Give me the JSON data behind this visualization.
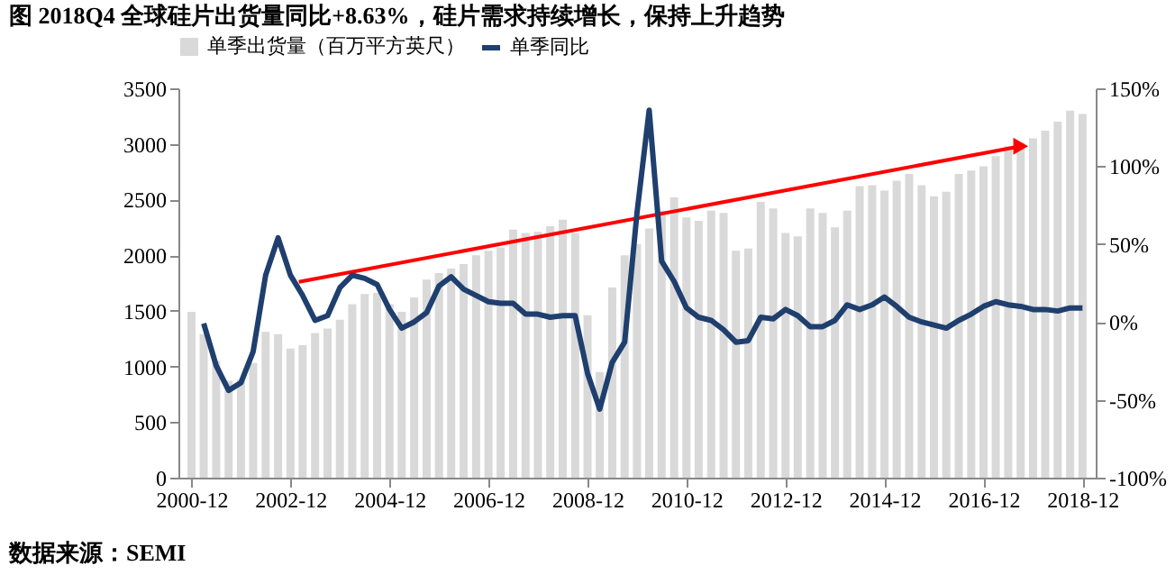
{
  "chart_data": {
    "type": "bar",
    "title": "图    2018Q4 全球硅片出货量同比+8.63%，硅片需求持续增长，保持上升趋势",
    "annotations": [
      "数据来源：SEMI"
    ],
    "x": [
      "2000-12",
      "2001-03",
      "2001-06",
      "2001-09",
      "2001-12",
      "2002-03",
      "2002-06",
      "2002-09",
      "2002-12",
      "2003-03",
      "2003-06",
      "2003-09",
      "2003-12",
      "2004-03",
      "2004-06",
      "2004-09",
      "2004-12",
      "2005-03",
      "2005-06",
      "2005-09",
      "2005-12",
      "2006-03",
      "2006-06",
      "2006-09",
      "2006-12",
      "2007-03",
      "2007-06",
      "2007-09",
      "2007-12",
      "2008-03",
      "2008-06",
      "2008-09",
      "2008-12",
      "2009-03",
      "2009-06",
      "2009-09",
      "2009-12",
      "2010-03",
      "2010-06",
      "2010-09",
      "2010-12",
      "2011-03",
      "2011-06",
      "2011-09",
      "2011-12",
      "2012-03",
      "2012-06",
      "2012-09",
      "2012-12",
      "2013-03",
      "2013-06",
      "2013-09",
      "2013-12",
      "2014-03",
      "2014-06",
      "2014-09",
      "2014-12",
      "2015-03",
      "2015-06",
      "2015-09",
      "2015-12",
      "2016-03",
      "2016-06",
      "2016-09",
      "2016-12",
      "2017-03",
      "2017-06",
      "2017-09",
      "2017-12",
      "2018-03",
      "2018-06",
      "2018-09",
      "2018-12"
    ],
    "series": [
      {
        "name": "单季出货量（百万平方英尺）",
        "color": "#d9d9d9",
        "values": [
          1490,
          1290,
          1050,
          870,
          880,
          1030,
          1310,
          1290,
          1160,
          1190,
          1300,
          1340,
          1420,
          1560,
          1650,
          1660,
          1560,
          1490,
          1620,
          1780,
          1840,
          1880,
          1920,
          2000,
          2040,
          2070,
          2230,
          2200,
          2210,
          2260,
          2320,
          2200,
          1460,
          950,
          1710,
          2000,
          2100,
          2240,
          2400,
          2520,
          2340,
          2310,
          2400,
          2380,
          2040,
          2060,
          2480,
          2420,
          2200,
          2170,
          2420,
          2380,
          2250,
          2400,
          2620,
          2630,
          2580,
          2670,
          2730,
          2630,
          2530,
          2570,
          2730,
          2760,
          2800,
          2890,
          2980,
          3010,
          3050,
          3120,
          3200,
          3300,
          3270
        ]
      },
      {
        "name": "单季同比",
        "type": "line",
        "axis": "y2",
        "color": "#1f3f6e",
        "values": [
          null,
          -1,
          -28,
          -44,
          -39,
          -19,
          30,
          54,
          30,
          17,
          1,
          4,
          22,
          30,
          28,
          24,
          8,
          -4,
          0,
          6,
          23,
          29,
          21,
          17,
          13,
          12,
          12,
          5,
          5,
          3,
          4,
          4,
          -33,
          -56,
          -26,
          -13,
          70,
          136,
          39,
          26,
          9,
          3,
          1,
          -5,
          -13,
          -12,
          3,
          2,
          8,
          4,
          -3,
          -3,
          1,
          11,
          8,
          11,
          16,
          10,
          3,
          0,
          -2,
          -4,
          1,
          5,
          10,
          13,
          11,
          10,
          8,
          8,
          7,
          9,
          9
        ]
      },
      {
        "type": "line",
        "color": "#ff0000",
        "x": [
          "2003-02",
          "2017-09"
        ],
        "values": [
          1760,
          2980
        ]
      }
    ],
    "xlim": [
      "2000-11",
      "2019-01"
    ],
    "xticks": [
      {
        "value": "2000-12",
        "label": "2000-12"
      },
      {
        "value": "2002-12",
        "label": "2002-12"
      },
      {
        "value": "2004-12",
        "label": "2004-12"
      },
      {
        "value": "2006-12",
        "label": "2006-12"
      },
      {
        "value": "2008-12",
        "label": "2008-12"
      },
      {
        "value": "2010-12",
        "label": "2010-12"
      },
      {
        "value": "2012-12",
        "label": "2012-12"
      },
      {
        "value": "2014-12",
        "label": "2014-12"
      },
      {
        "value": "2016-12",
        "label": "2016-12"
      },
      {
        "value": "2018-12",
        "label": "2018-12"
      }
    ],
    "ylim": [
      0,
      3500
    ],
    "yticks": [
      0,
      500,
      1000,
      1500,
      2000,
      2500,
      3000,
      3500
    ],
    "y2lim": [
      -100,
      150
    ],
    "y2ticks": [
      {
        "value": -100,
        "label": "-100%"
      },
      {
        "value": -50,
        "label": "-50%"
      },
      {
        "value": 0,
        "label": "0%"
      },
      {
        "value": 50,
        "label": "50%"
      },
      {
        "value": 100,
        "label": "100%"
      },
      {
        "value": 150,
        "label": "150%"
      }
    ],
    "grid": false,
    "legend": "top"
  }
}
